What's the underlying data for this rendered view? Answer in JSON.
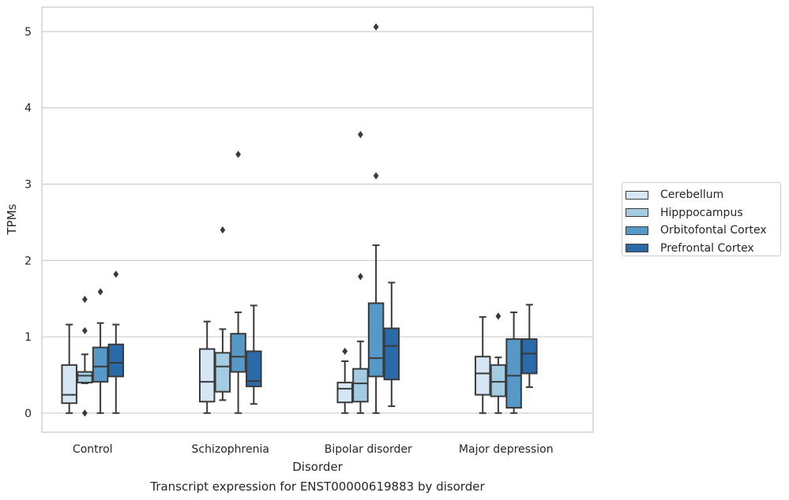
{
  "chart_data": {
    "type": "box",
    "title": "",
    "caption": "Transcript expression for ENST00000619883 by disorder",
    "xlabel": "Disorder",
    "ylabel": "TPMs",
    "ylim": [
      -0.25,
      5.32
    ],
    "yticks": [
      "0",
      "1",
      "2",
      "3",
      "4",
      "5"
    ],
    "ytick_values": [
      0,
      1,
      2,
      3,
      4,
      5
    ],
    "grid": "horizontal",
    "legend_position": "right",
    "categories": [
      "Control",
      "Schizophrenia",
      "Bipolar disorder",
      "Major depression"
    ],
    "series": [
      {
        "name": "Cerebellum",
        "color": "#d6e6f4",
        "boxes": [
          {
            "min": 0.0,
            "q1": 0.13,
            "median": 0.24,
            "q3": 0.63,
            "max": 1.16,
            "outliers": []
          },
          {
            "min": 0.0,
            "q1": 0.15,
            "median": 0.41,
            "q3": 0.84,
            "max": 1.2,
            "outliers": []
          },
          {
            "min": 0.0,
            "q1": 0.14,
            "median": 0.32,
            "q3": 0.4,
            "max": 0.68,
            "outliers": [
              0.81
            ]
          },
          {
            "min": 0.0,
            "q1": 0.24,
            "median": 0.52,
            "q3": 0.74,
            "max": 1.26,
            "outliers": []
          }
        ]
      },
      {
        "name": "Hipppocampus",
        "color": "#a3cce3",
        "boxes": [
          {
            "min": 0.39,
            "q1": 0.4,
            "median": 0.49,
            "q3": 0.54,
            "max": 0.77,
            "outliers": [
              0.0,
              1.08,
              1.49
            ]
          },
          {
            "min": 0.17,
            "q1": 0.28,
            "median": 0.61,
            "q3": 0.79,
            "max": 1.1,
            "outliers": [
              2.4
            ]
          },
          {
            "min": 0.0,
            "q1": 0.15,
            "median": 0.39,
            "q3": 0.58,
            "max": 0.94,
            "outliers": [
              1.79,
              3.65
            ]
          },
          {
            "min": 0.0,
            "q1": 0.22,
            "median": 0.41,
            "q3": 0.63,
            "max": 0.73,
            "outliers": [
              1.27
            ]
          }
        ]
      },
      {
        "name": "Orbitofontal Cortex",
        "color": "#5699c8",
        "boxes": [
          {
            "min": 0.0,
            "q1": 0.41,
            "median": 0.61,
            "q3": 0.86,
            "max": 1.18,
            "outliers": [
              1.59
            ]
          },
          {
            "min": 0.0,
            "q1": 0.54,
            "median": 0.74,
            "q3": 1.04,
            "max": 1.32,
            "outliers": [
              3.39
            ]
          },
          {
            "min": 0.0,
            "q1": 0.48,
            "median": 0.72,
            "q3": 1.44,
            "max": 2.2,
            "outliers": [
              3.11,
              5.06
            ]
          },
          {
            "min": 0.0,
            "q1": 0.07,
            "median": 0.49,
            "q3": 0.97,
            "max": 1.32,
            "outliers": []
          }
        ]
      },
      {
        "name": "Prefrontal Cortex",
        "color": "#2b6aa9",
        "boxes": [
          {
            "min": 0.0,
            "q1": 0.48,
            "median": 0.66,
            "q3": 0.9,
            "max": 1.16,
            "outliers": [
              1.82
            ]
          },
          {
            "min": 0.12,
            "q1": 0.35,
            "median": 0.42,
            "q3": 0.81,
            "max": 1.41,
            "outliers": []
          },
          {
            "min": 0.09,
            "q1": 0.44,
            "median": 0.88,
            "q3": 1.11,
            "max": 1.71,
            "outliers": []
          },
          {
            "min": 0.34,
            "q1": 0.52,
            "median": 0.78,
            "q3": 0.97,
            "max": 1.42,
            "outliers": []
          }
        ]
      }
    ]
  }
}
